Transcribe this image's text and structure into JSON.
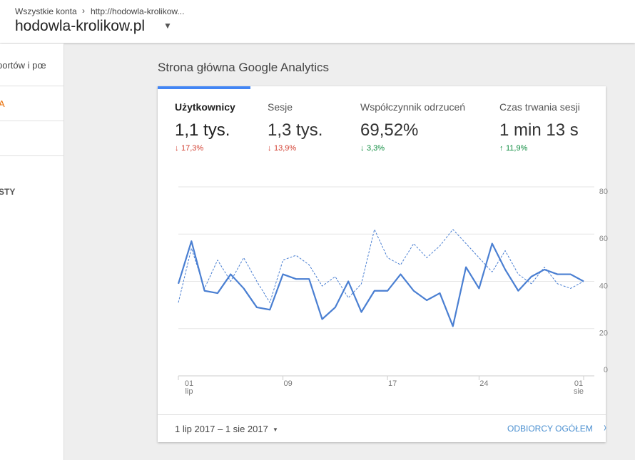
{
  "header": {
    "breadcrumb": [
      "Wszystkie konta",
      "http://hodowla-krolikow..."
    ],
    "property": "hodowla-krolikow.pl"
  },
  "sidebar": {
    "items": [
      "portów i pœ",
      "A",
      "STY"
    ]
  },
  "page_title": "Strona główna Google Analytics",
  "metrics": [
    {
      "label": "Użytkownicy",
      "value": "1,1 tys.",
      "change": "17,3%",
      "direction": "down"
    },
    {
      "label": "Sesje",
      "value": "1,3 tys.",
      "change": "13,9%",
      "direction": "down"
    },
    {
      "label": "Współczynnik odrzuceń",
      "value": "69,52%",
      "change": "3,3%",
      "direction": "down-good"
    },
    {
      "label": "Czas trwania sesji",
      "value": "1 min 13 s",
      "change": "11,9%",
      "direction": "up"
    }
  ],
  "chart": {
    "type": "line",
    "categories": [
      "01\nlip",
      null,
      null,
      null,
      null,
      null,
      null,
      null,
      "09",
      null,
      null,
      null,
      null,
      null,
      null,
      null,
      "17",
      null,
      null,
      null,
      null,
      null,
      null,
      "24",
      null,
      null,
      null,
      null,
      null,
      null,
      null,
      "01\nsie"
    ],
    "series": [
      {
        "color": "#4a7fd2",
        "dashed": false,
        "values": [
          39,
          57,
          36,
          35,
          43,
          37,
          29,
          28,
          43,
          41,
          41,
          24,
          29,
          40,
          27,
          36,
          36,
          43,
          36,
          32,
          35,
          21,
          46,
          37,
          56,
          45,
          36,
          42,
          45,
          43,
          43,
          40
        ]
      },
      {
        "color": "#4a7fd2",
        "dashed": true,
        "values": [
          31,
          54,
          37,
          49,
          40,
          50,
          40,
          31,
          49,
          51,
          47,
          38,
          42,
          33,
          39,
          62,
          50,
          47,
          56,
          50,
          55,
          62,
          56,
          50,
          44,
          53,
          43,
          39,
          46,
          39,
          37,
          40
        ]
      }
    ],
    "ylim": [
      0,
      80
    ],
    "yticks": [
      0,
      20,
      40,
      60,
      80
    ],
    "grid": true
  },
  "footer": {
    "date_range": "1 lip 2017 – 1 sie 2017",
    "link": "ODBIORCY OGÓŁEM"
  }
}
